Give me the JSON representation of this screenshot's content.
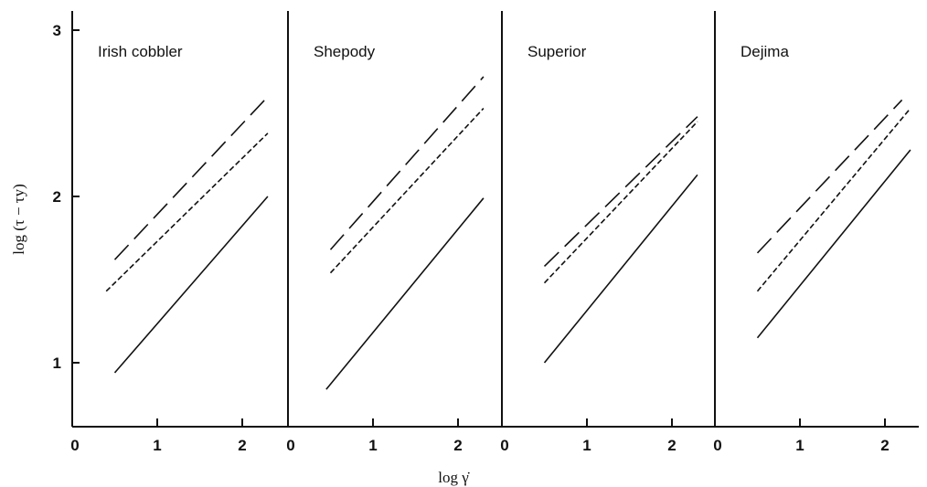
{
  "chart_data": {
    "type": "line",
    "xlabel": "log γ̇",
    "ylabel": "log (τ − τy)",
    "xlim": [
      0,
      2.5
    ],
    "ylim": [
      0.6,
      3.1
    ],
    "x_ticks": [
      "0",
      "1",
      "2"
    ],
    "y_ticks": [
      "1",
      "2",
      "3"
    ],
    "line_styles": [
      "long-dash",
      "short-dash",
      "solid"
    ],
    "panels": [
      {
        "title": "Irish cobbler",
        "series": [
          {
            "style": "long-dash",
            "x": [
              0.5,
              2.3
            ],
            "y": [
              1.62,
              2.6
            ]
          },
          {
            "style": "short-dash",
            "x": [
              0.4,
              2.3
            ],
            "y": [
              1.43,
              2.38
            ]
          },
          {
            "style": "solid",
            "x": [
              0.5,
              2.3
            ],
            "y": [
              0.94,
              2.0
            ]
          }
        ]
      },
      {
        "title": "Shepody",
        "series": [
          {
            "style": "long-dash",
            "x": [
              0.5,
              2.3
            ],
            "y": [
              1.68,
              2.72
            ]
          },
          {
            "style": "short-dash",
            "x": [
              0.5,
              2.3
            ],
            "y": [
              1.54,
              2.53
            ]
          },
          {
            "style": "solid",
            "x": [
              0.45,
              2.3
            ],
            "y": [
              0.84,
              1.99
            ]
          }
        ]
      },
      {
        "title": "Superior",
        "series": [
          {
            "style": "long-dash",
            "x": [
              0.5,
              2.3
            ],
            "y": [
              1.58,
              2.48
            ]
          },
          {
            "style": "short-dash",
            "x": [
              0.5,
              2.3
            ],
            "y": [
              1.48,
              2.45
            ]
          },
          {
            "style": "solid",
            "x": [
              0.5,
              2.3
            ],
            "y": [
              1.0,
              2.13
            ]
          }
        ]
      },
      {
        "title": "Dejima",
        "series": [
          {
            "style": "long-dash",
            "x": [
              0.5,
              2.2
            ],
            "y": [
              1.66,
              2.58
            ]
          },
          {
            "style": "short-dash",
            "x": [
              0.5,
              2.3
            ],
            "y": [
              1.43,
              2.53
            ]
          },
          {
            "style": "solid",
            "x": [
              0.5,
              2.3
            ],
            "y": [
              1.15,
              2.28
            ]
          }
        ]
      }
    ]
  }
}
